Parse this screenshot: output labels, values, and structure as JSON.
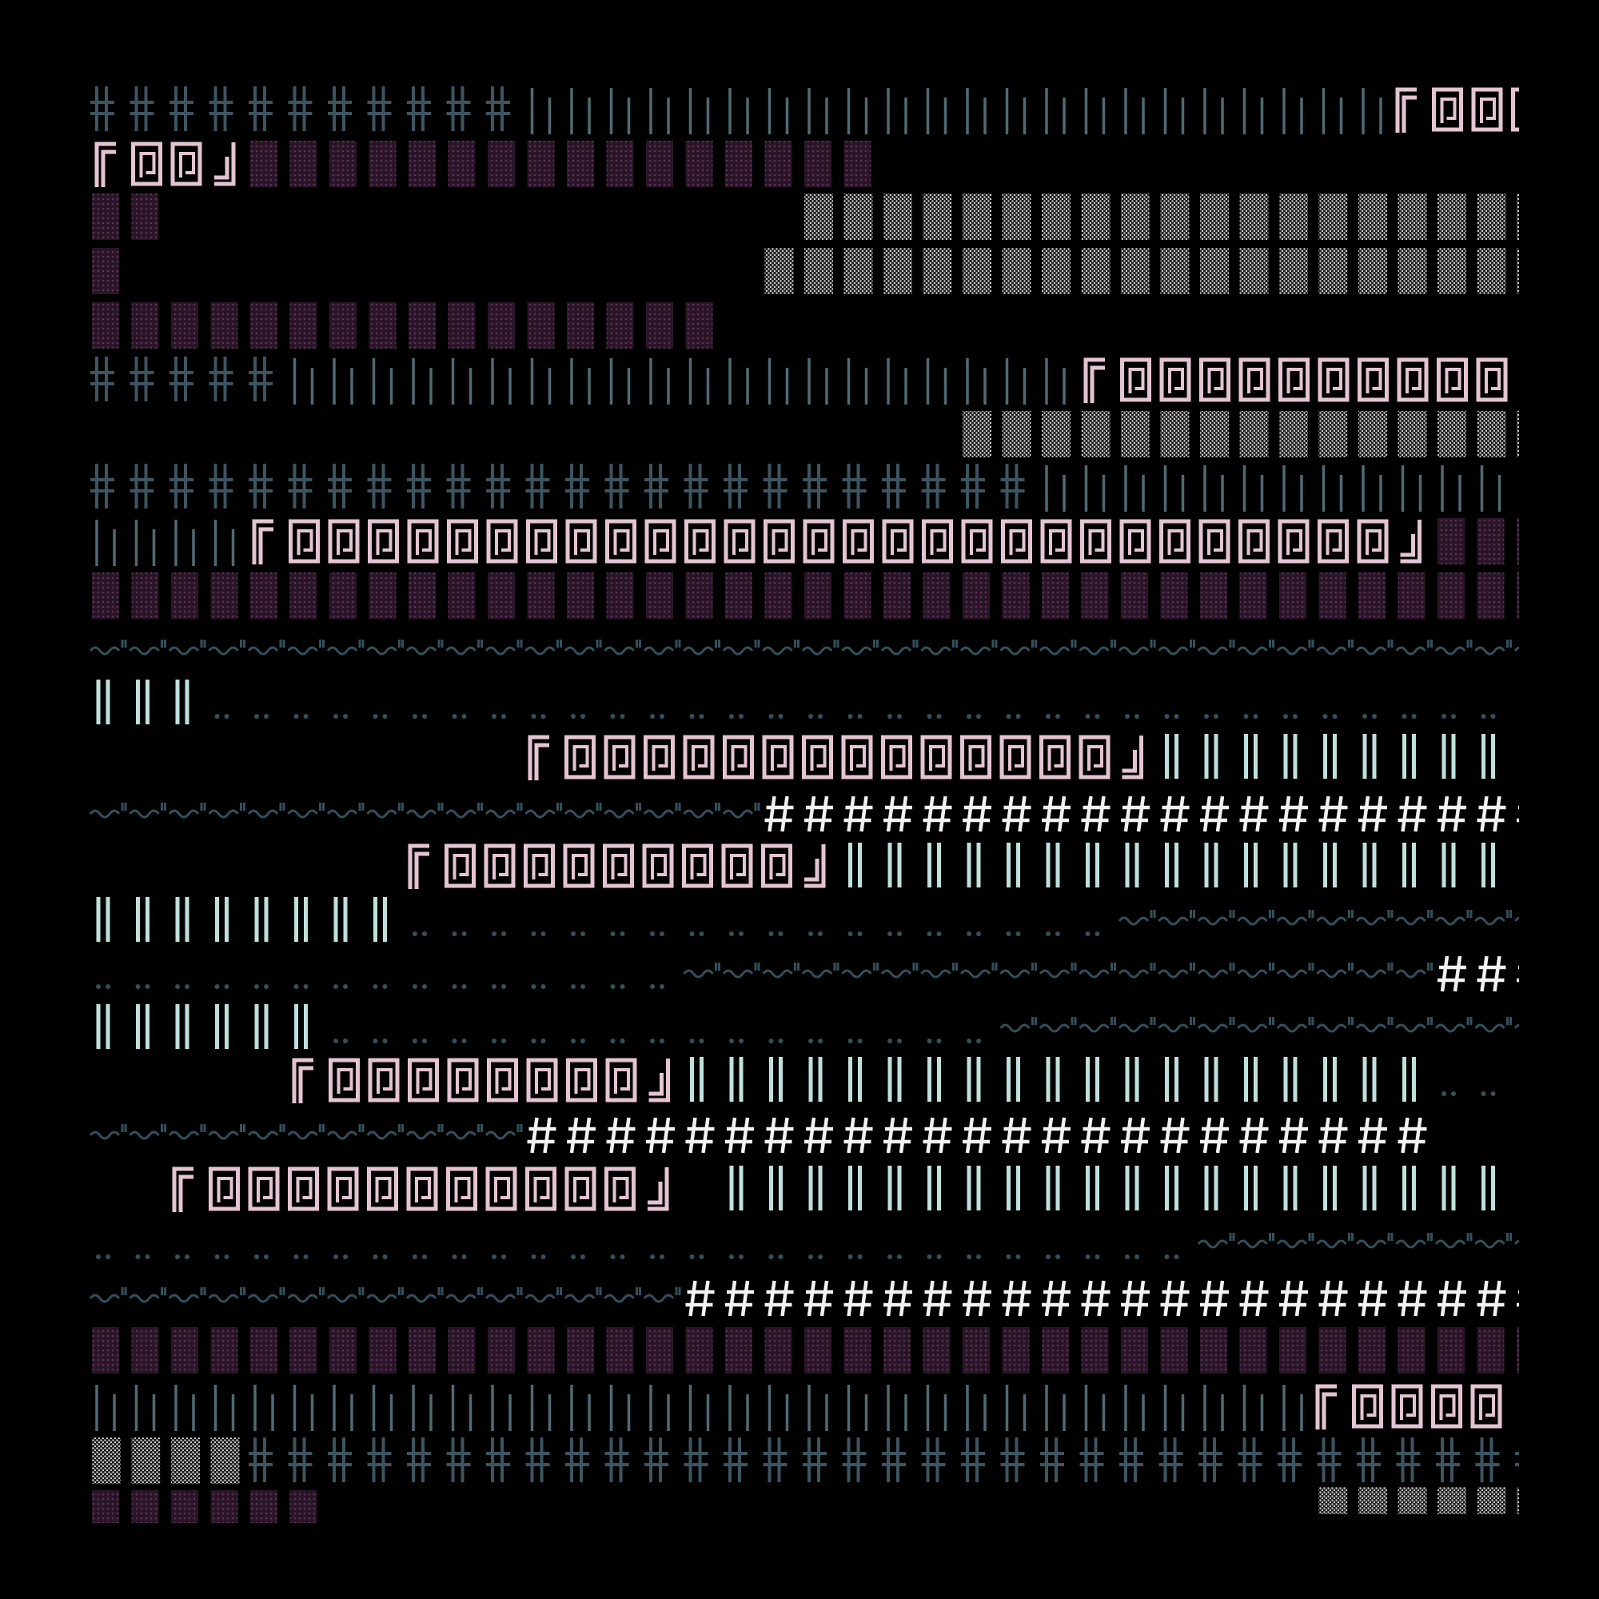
{
  "palette": {
    "background": "#000000",
    "blue_gray": "#3c5560",
    "teal_line": "#4f6a72",
    "dim_blue": "#33505c",
    "pink": "#e4c4d2",
    "plum_block": "#2a1528",
    "plum_dot": "#5a3554",
    "white_stipple": "#cfcfcf",
    "pale_cyan": "#bfe0dc",
    "hash_white": "#f2f2f2"
  },
  "glyphs": {
    "cross": "double-cross-glyph",
    "tall_bar": "tall-bar-glyph",
    "double_bar": "double-bar-glyph",
    "dot_block": "dotted-block-glyph",
    "stipple_block": "stipple-block-glyph",
    "pink_frame": "box-frame-glyph",
    "frame_open": "corner-open-glyph",
    "frame_close": "corner-close-glyph",
    "wave": "wave-glyph",
    "dots": "double-dot-glyph",
    "hash": "hash-glyph",
    "stipple_small": "stipple-small-glyph"
  }
}
